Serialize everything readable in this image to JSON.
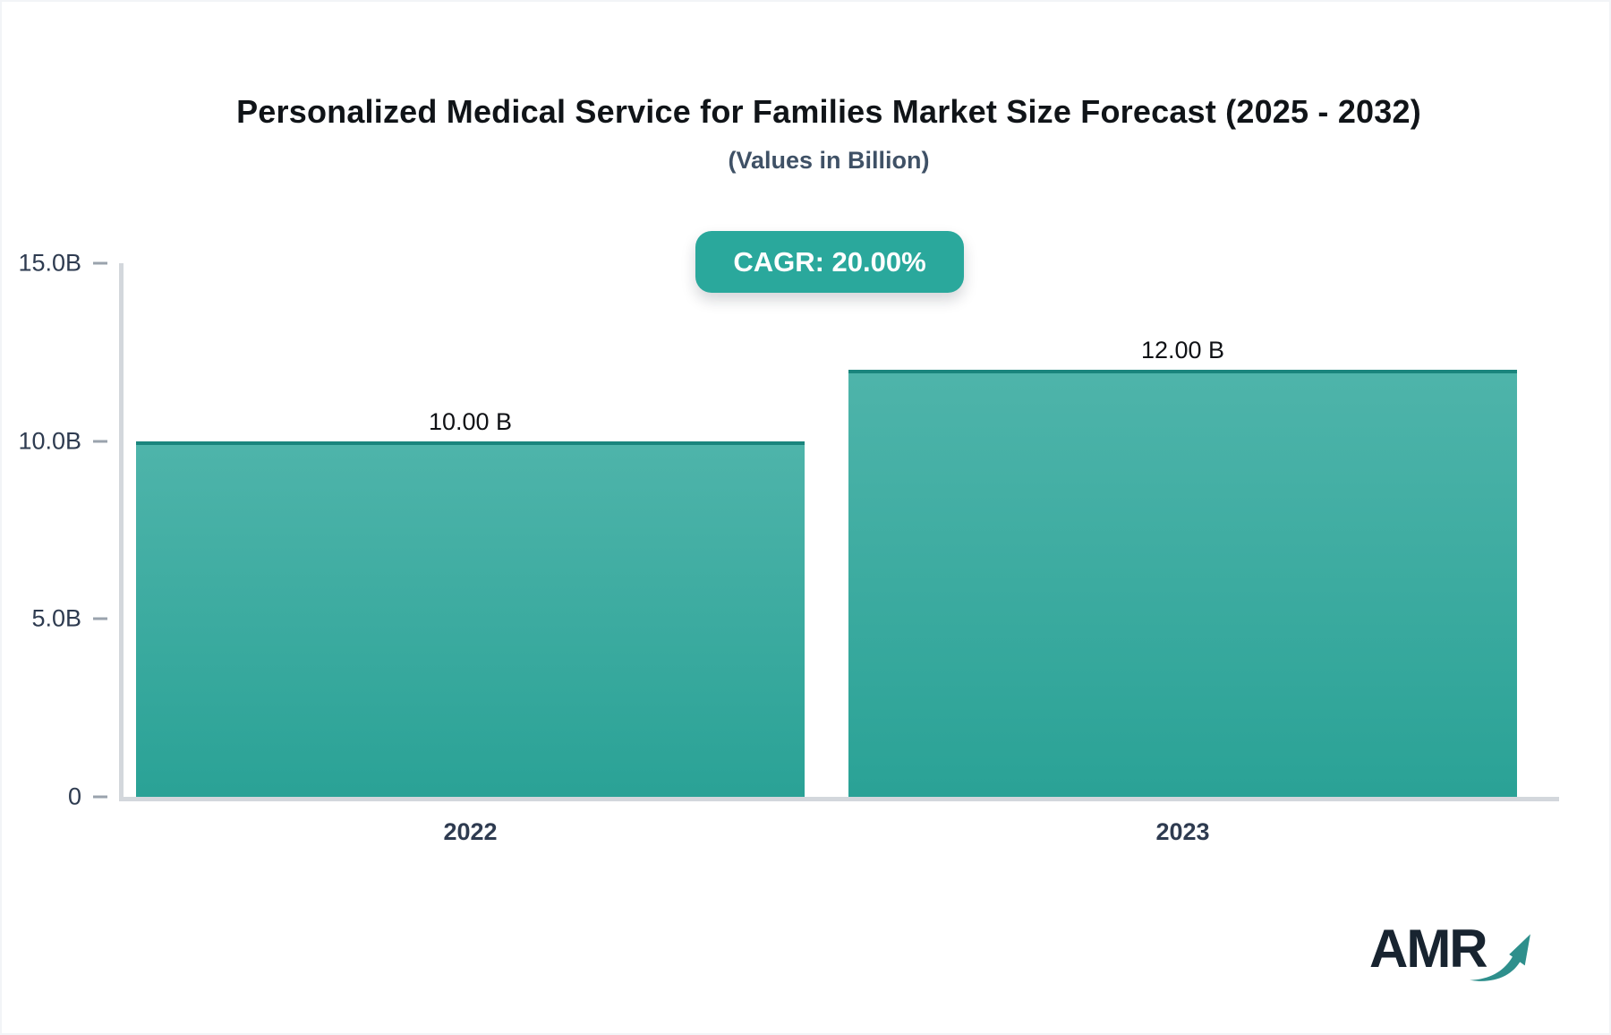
{
  "header": {
    "title": "Personalized Medical Service for Families Market Size Forecast (2025 - 2032)",
    "subtitle": "(Values in Billion)",
    "cagr_badge": "CAGR: 20.00%"
  },
  "chart_data": {
    "type": "bar",
    "title": "Personalized Medical Service for Families Market Size Forecast (2025 - 2032)",
    "subtitle": "(Values in Billion)",
    "unit": "Billion",
    "cagr_percent": 20.0,
    "categories": [
      "2022",
      "2023"
    ],
    "values": [
      10.0,
      12.0
    ],
    "value_labels": [
      "10.00 B",
      "12.00 B"
    ],
    "ylim": [
      0,
      15
    ],
    "y_ticks": [
      {
        "label": "15.0B",
        "value": 15
      },
      {
        "label": "10.0B",
        "value": 10
      },
      {
        "label": "5.0B",
        "value": 5
      },
      {
        "label": "0",
        "value": 0
      }
    ],
    "grid": false,
    "legend": "none"
  },
  "colors": {
    "accent_teal": "#2aa89c",
    "bar_gradient_top": "#4eb4aa",
    "bar_gradient_bottom": "#2aa296",
    "bar_cap": "#1a857d",
    "axis_line": "#d3d7dc",
    "tick_dash": "#9aa3ad",
    "title_text": "#101418",
    "subtitle_text": "#3f5166",
    "axis_label_text": "#2e3b50",
    "arrow_teal": "#2e8f8c"
  },
  "logo": {
    "text": "AMR"
  }
}
